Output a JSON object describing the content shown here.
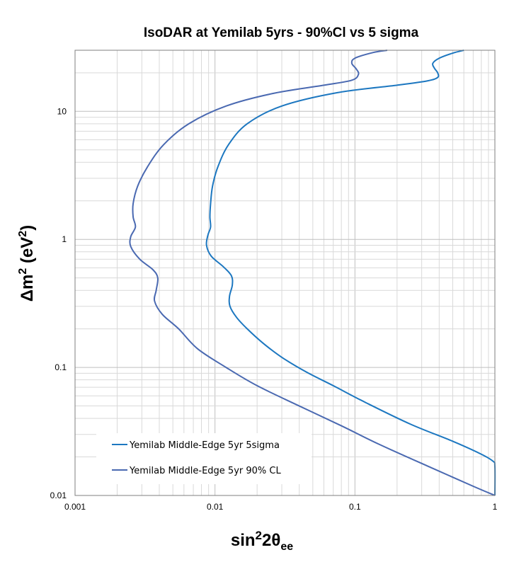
{
  "chart_data": {
    "type": "line",
    "title": "IsoDAR at Yemilab 5yrs - 90%Cl vs 5 sigma",
    "xlabel": {
      "main": "sin",
      "sup": "2",
      "mid": "2θ",
      "sub": "ee"
    },
    "ylabel": {
      "pre": "Δm",
      "sup1": "2",
      "mid": " (eV",
      "sup2": "2",
      "post": ")"
    },
    "xscale": "log",
    "yscale": "log",
    "xlim": [
      0.001,
      1
    ],
    "ylim": [
      0.01,
      30
    ],
    "x_ticks": [
      {
        "value": 0.001,
        "label": "0.001"
      },
      {
        "value": 0.01,
        "label": "0.01"
      },
      {
        "value": 0.1,
        "label": "0.1"
      },
      {
        "value": 1,
        "label": "1"
      }
    ],
    "y_ticks": [
      {
        "value": 0.01,
        "label": "0.01"
      },
      {
        "value": 0.1,
        "label": "0.1"
      },
      {
        "value": 1,
        "label": "1"
      },
      {
        "value": 10,
        "label": "10"
      }
    ],
    "grid": true,
    "legend_position": "bottom-left",
    "series": [
      {
        "name": "Yemilab Middle-Edge 5yr 5sigma",
        "color": "#1c77c0",
        "points": [
          [
            1.0,
            0.01
          ],
          [
            1.0,
            0.0168
          ],
          [
            0.97,
            0.0185
          ],
          [
            0.8,
            0.021
          ],
          [
            0.5,
            0.0265
          ],
          [
            0.25,
            0.036
          ],
          [
            0.12,
            0.053
          ],
          [
            0.07,
            0.072
          ],
          [
            0.045,
            0.092
          ],
          [
            0.03,
            0.12
          ],
          [
            0.022,
            0.155
          ],
          [
            0.017,
            0.2
          ],
          [
            0.0143,
            0.245
          ],
          [
            0.0128,
            0.3
          ],
          [
            0.0127,
            0.36
          ],
          [
            0.0133,
            0.44
          ],
          [
            0.0131,
            0.52
          ],
          [
            0.0115,
            0.61
          ],
          [
            0.0094,
            0.74
          ],
          [
            0.0087,
            0.9
          ],
          [
            0.0089,
            1.08
          ],
          [
            0.0093,
            1.25
          ],
          [
            0.0092,
            1.5
          ],
          [
            0.0093,
            1.9
          ],
          [
            0.0096,
            2.6
          ],
          [
            0.0105,
            3.7
          ],
          [
            0.0125,
            5.5
          ],
          [
            0.017,
            8.0
          ],
          [
            0.03,
            11.0
          ],
          [
            0.075,
            14.0
          ],
          [
            0.2,
            16.0
          ],
          [
            0.33,
            17.3
          ],
          [
            0.39,
            18.4
          ],
          [
            0.39,
            20.0
          ],
          [
            0.37,
            21.7
          ],
          [
            0.36,
            23.7
          ],
          [
            0.4,
            26.0
          ],
          [
            0.5,
            28.5
          ],
          [
            0.6,
            30.0
          ]
        ]
      },
      {
        "name": "Yemilab Middle-Edge 5yr 90% CL",
        "color": "#4a69b1",
        "points": [
          [
            1.0,
            0.01
          ],
          [
            0.7,
            0.0118
          ],
          [
            0.35,
            0.0165
          ],
          [
            0.15,
            0.025
          ],
          [
            0.08,
            0.035
          ],
          [
            0.04,
            0.05
          ],
          [
            0.02,
            0.072
          ],
          [
            0.012,
            0.1
          ],
          [
            0.0075,
            0.14
          ],
          [
            0.0055,
            0.2
          ],
          [
            0.0042,
            0.26
          ],
          [
            0.0037,
            0.33
          ],
          [
            0.0038,
            0.4
          ],
          [
            0.0039,
            0.5
          ],
          [
            0.0036,
            0.58
          ],
          [
            0.0029,
            0.7
          ],
          [
            0.0025,
            0.88
          ],
          [
            0.0025,
            1.05
          ],
          [
            0.0027,
            1.25
          ],
          [
            0.0026,
            1.5
          ],
          [
            0.0026,
            1.9
          ],
          [
            0.0028,
            2.6
          ],
          [
            0.0033,
            3.7
          ],
          [
            0.0043,
            5.5
          ],
          [
            0.0065,
            8.0
          ],
          [
            0.012,
            11.0
          ],
          [
            0.026,
            13.8
          ],
          [
            0.06,
            16.0
          ],
          [
            0.095,
            17.5
          ],
          [
            0.106,
            19.5
          ],
          [
            0.102,
            21.5
          ],
          [
            0.095,
            23.7
          ],
          [
            0.1,
            26.0
          ],
          [
            0.135,
            28.8
          ],
          [
            0.17,
            30.0
          ]
        ]
      }
    ]
  }
}
